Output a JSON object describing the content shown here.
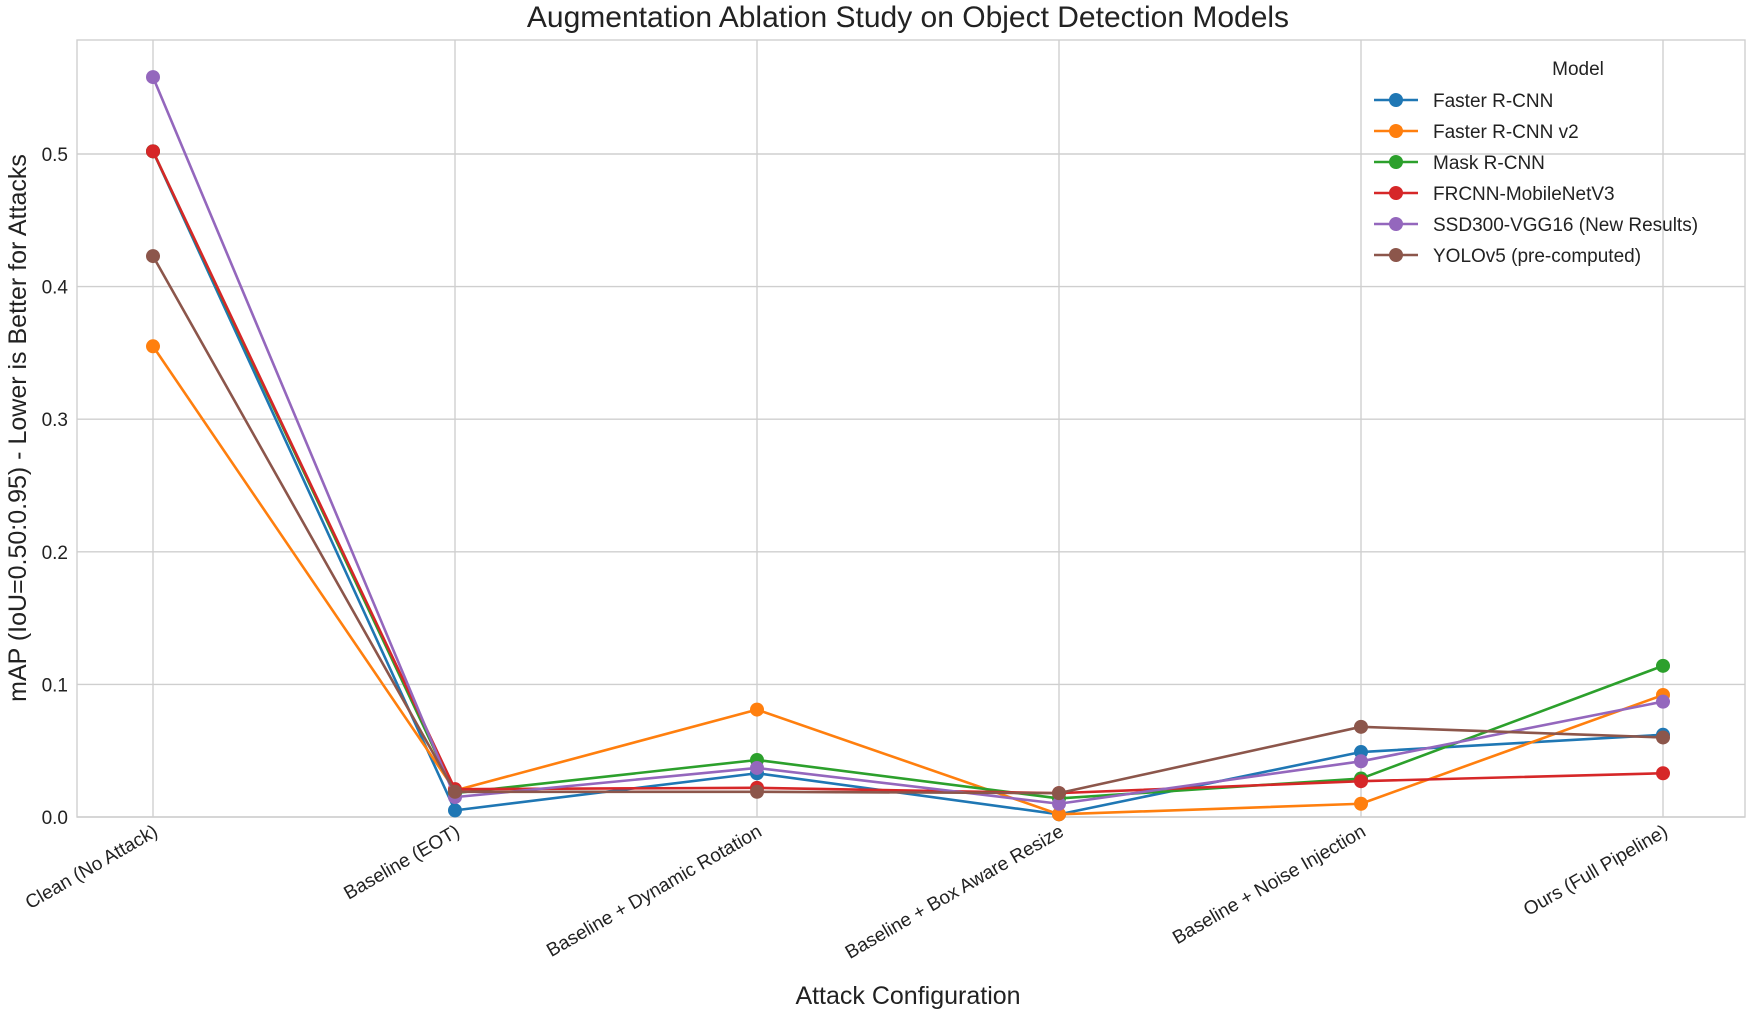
{
  "chart_data": {
    "type": "line",
    "title": "Augmentation Ablation Study on Object Detection Models",
    "xlabel": "Attack Configuration",
    "ylabel": "mAP (IoU=0.50:0.95) - Lower is Better for Attacks",
    "ylim": [
      0.0,
      0.59
    ],
    "yticks": [
      "0.0",
      "0.1",
      "0.2",
      "0.3",
      "0.4",
      "0.5"
    ],
    "grid": true,
    "legend_title": "Model",
    "legend_position": "top-right",
    "categories": [
      "Clean (No Attack)",
      "Baseline (EOT)",
      "Baseline + Dynamic Rotation",
      "Baseline + Box Aware Resize",
      "Baseline + Noise Injection",
      "Ours (Full Pipeline)"
    ],
    "series": [
      {
        "name": "Faster R-CNN",
        "color": "#1f77b4",
        "values": [
          0.502,
          0.005,
          0.033,
          0.002,
          0.049,
          0.062
        ]
      },
      {
        "name": "Faster R-CNN v2",
        "color": "#ff7f0e",
        "values": [
          0.355,
          0.02,
          0.081,
          0.002,
          0.01,
          0.092
        ]
      },
      {
        "name": "Mask R-CNN",
        "color": "#2ca02c",
        "values": [
          0.502,
          0.018,
          0.043,
          0.014,
          0.029,
          0.114
        ]
      },
      {
        "name": "FRCNN-MobileNetV3",
        "color": "#d62728",
        "values": [
          0.502,
          0.021,
          0.022,
          0.018,
          0.027,
          0.033
        ]
      },
      {
        "name": "SSD300-VGG16 (New Results)",
        "color": "#9467bd",
        "values": [
          0.558,
          0.015,
          0.037,
          0.01,
          0.042,
          0.087
        ]
      },
      {
        "name": "YOLOv5 (pre-computed)",
        "color": "#8c564b",
        "values": [
          0.423,
          0.019,
          0.019,
          0.018,
          0.068,
          0.06
        ]
      }
    ]
  }
}
